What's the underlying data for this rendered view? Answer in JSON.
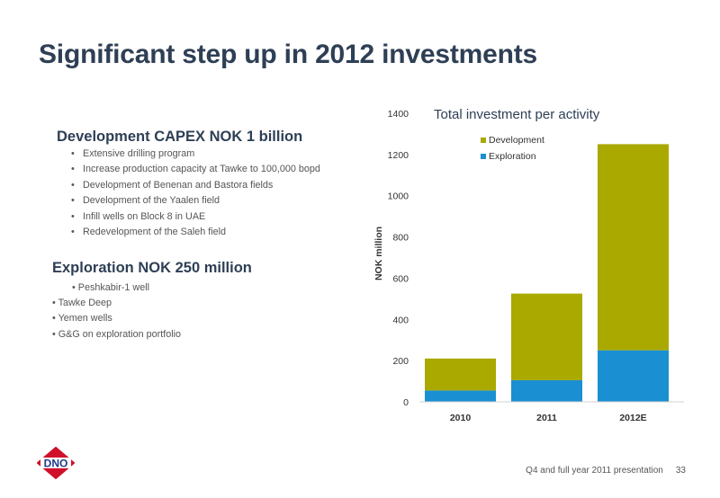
{
  "slide": {
    "title": "Significant step up in 2012 investments",
    "development": {
      "heading": "Development CAPEX NOK 1 billion",
      "items": [
        "Extensive drilling program",
        "Increase production capacity at Tawke to 100,000 bopd",
        "Development of Benenan and Bastora fields",
        "Development of the Yaalen field",
        "Infill wells on Block 8 in UAE",
        "Redevelopment of the Saleh field"
      ]
    },
    "exploration": {
      "heading": "Exploration NOK 250 million",
      "items": [
        "Peshkabir-1 well",
        "Tawke Deep",
        "Yemen wells",
        "G&G on exploration portfolio"
      ]
    },
    "footer": {
      "text": "Q4 and full year 2011 presentation",
      "page": "33"
    },
    "logo_text": "DNO"
  },
  "chart_data": {
    "type": "bar",
    "stacked": true,
    "title": "Total investment per activity",
    "ylabel": "NOK million",
    "xlabel": "",
    "categories": [
      "2010",
      "2011",
      "2012E"
    ],
    "series": [
      {
        "name": "Exploration",
        "color": "#1a8fd1",
        "values": [
          55,
          105,
          250
        ]
      },
      {
        "name": "Development",
        "color": "#a9a900",
        "values": [
          155,
          420,
          1000
        ]
      }
    ],
    "ylim": [
      0,
      1400
    ],
    "yticks": [
      0,
      200,
      400,
      600,
      800,
      1000,
      1200,
      1400
    ],
    "grid": false,
    "legend_position": "top-left",
    "legend_order": [
      "Development",
      "Exploration"
    ]
  },
  "colors": {
    "title": "#2e3f55",
    "logo_red": "#d0102b"
  }
}
